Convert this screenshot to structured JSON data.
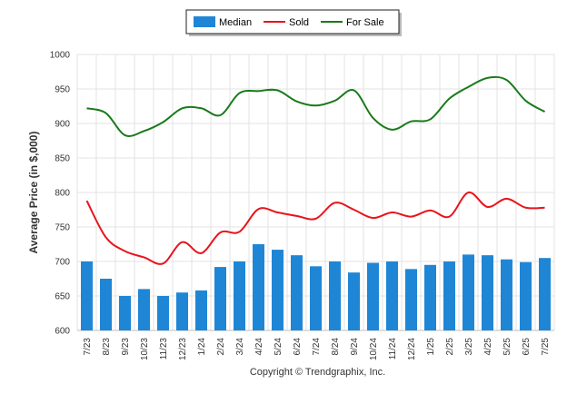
{
  "chart_data": {
    "type": "bar",
    "ylabel": "Average Price (in $,000)",
    "ylim": [
      600,
      1000
    ],
    "yticks": [
      600,
      650,
      700,
      750,
      800,
      850,
      900,
      950,
      1000
    ],
    "grid": true,
    "legend_position": "top-center",
    "categories": [
      "7/23",
      "8/23",
      "9/23",
      "10/23",
      "11/23",
      "12/23",
      "1/24",
      "2/24",
      "3/24",
      "4/24",
      "5/24",
      "6/24",
      "7/24",
      "8/24",
      "9/24",
      "10/24",
      "11/24",
      "12/24",
      "1/25",
      "2/25",
      "3/25",
      "4/25",
      "5/25",
      "6/25",
      "7/25"
    ],
    "series": [
      {
        "name": "Median",
        "type": "bar",
        "color": "#1f86d6",
        "values": [
          700,
          675,
          650,
          660,
          650,
          655,
          658,
          692,
          700,
          725,
          717,
          709,
          693,
          700,
          684,
          698,
          700,
          689,
          695,
          700,
          710,
          709,
          703,
          699,
          705
        ]
      },
      {
        "name": "Sold",
        "type": "line",
        "color": "#e8141b",
        "values": [
          788,
          735,
          715,
          706,
          697,
          728,
          712,
          742,
          743,
          776,
          771,
          766,
          762,
          785,
          775,
          763,
          771,
          765,
          774,
          765,
          800,
          779,
          791,
          778,
          778
        ]
      },
      {
        "name": "For Sale",
        "type": "line",
        "color": "#1a7a1a",
        "values": [
          922,
          915,
          883,
          889,
          902,
          922,
          922,
          912,
          944,
          947,
          948,
          932,
          926,
          933,
          948,
          908,
          891,
          903,
          906,
          936,
          953,
          966,
          963,
          933,
          917
        ]
      }
    ]
  },
  "footer": {
    "copyright": "Copyright © Trendgraphix, Inc."
  }
}
